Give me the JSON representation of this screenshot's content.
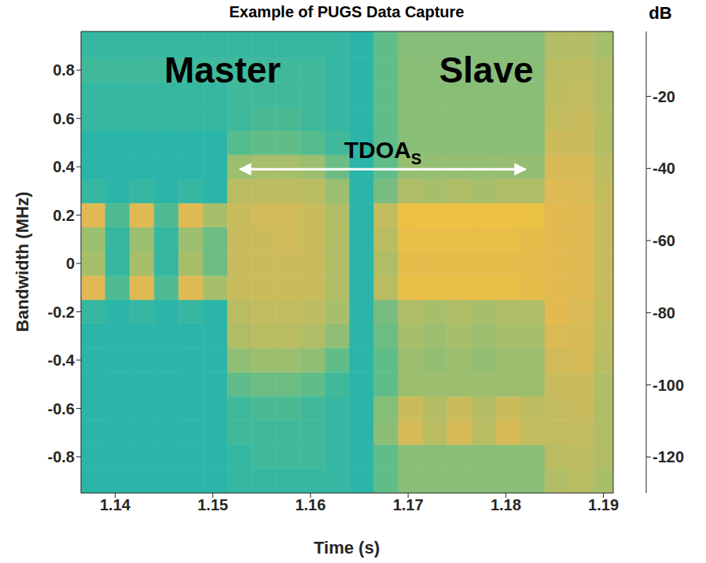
{
  "chart_data": {
    "type": "heatmap",
    "title": "Example of PUGS Data Capture",
    "x_label": "Time (s)",
    "y_label": "Bandwidth (MHz)",
    "xlim": [
      1.1365,
      1.191
    ],
    "ylim": [
      -0.95,
      0.96
    ],
    "xticks": [
      1.14,
      1.15,
      1.16,
      1.17,
      1.18,
      1.19
    ],
    "yticks": [
      -0.8,
      -0.6,
      -0.4,
      -0.2,
      0,
      0.2,
      0.4,
      0.6,
      0.8
    ],
    "x_edges": [
      1.1365,
      1.139,
      1.1415,
      1.144,
      1.1465,
      1.149,
      1.1515,
      1.154,
      1.1565,
      1.159,
      1.1615,
      1.164,
      1.1665,
      1.169,
      1.1715,
      1.174,
      1.1765,
      1.179,
      1.1815,
      1.184,
      1.1865,
      1.189,
      1.191
    ],
    "y_edges": [
      -0.95,
      -0.85,
      -0.75,
      -0.65,
      -0.55,
      -0.45,
      -0.35,
      -0.25,
      -0.15,
      -0.05,
      0.05,
      0.15,
      0.25,
      0.35,
      0.45,
      0.55,
      0.65,
      0.75,
      0.85,
      0.96
    ],
    "z": [
      [
        -62,
        -62,
        -62,
        -62,
        -62,
        -62,
        -60,
        -60,
        -60,
        -60,
        -60,
        -62,
        -52,
        -45,
        -45,
        -45,
        -45,
        -45,
        -45,
        -38,
        -36,
        -40
      ],
      [
        -62,
        -62,
        -62,
        -62,
        -62,
        -62,
        -60,
        -58,
        -58,
        -58,
        -60,
        -62,
        -52,
        -45,
        -45,
        -45,
        -45,
        -45,
        -45,
        -36,
        -35,
        -38
      ],
      [
        -62,
        -62,
        -62,
        -62,
        -62,
        -62,
        -58,
        -58,
        -58,
        -58,
        -60,
        -62,
        -45,
        -30,
        -36,
        -30,
        -36,
        -30,
        -34,
        -34,
        -34,
        -38
      ],
      [
        -62,
        -62,
        -62,
        -62,
        -62,
        -62,
        -58,
        -56,
        -56,
        -58,
        -60,
        -62,
        -46,
        -32,
        -37,
        -32,
        -37,
        -32,
        -35,
        -34,
        -33,
        -38
      ],
      [
        -62,
        -62,
        -62,
        -62,
        -62,
        -62,
        -52,
        -50,
        -50,
        -52,
        -58,
        -62,
        -52,
        -42,
        -42,
        -42,
        -42,
        -42,
        -42,
        -33,
        -32,
        -38
      ],
      [
        -62,
        -62,
        -62,
        -62,
        -62,
        -62,
        -44,
        -42,
        -42,
        -44,
        -52,
        -62,
        -52,
        -42,
        -43,
        -42,
        -43,
        -42,
        -42,
        -31,
        -30,
        -36
      ],
      [
        -62,
        -62,
        -62,
        -62,
        -62,
        -62,
        -38,
        -36,
        -36,
        -38,
        -44,
        -62,
        -50,
        -40,
        -42,
        -40,
        -42,
        -40,
        -40,
        -29,
        -30,
        -35
      ],
      [
        -60,
        -62,
        -60,
        -62,
        -60,
        -62,
        -36,
        -34,
        -34,
        -35,
        -40,
        -62,
        -48,
        -38,
        -40,
        -38,
        -40,
        -38,
        -38,
        -27,
        -29,
        -34
      ],
      [
        -28,
        -55,
        -28,
        -55,
        -28,
        -40,
        -33,
        -32,
        -32,
        -33,
        -38,
        -62,
        -36,
        -24,
        -24,
        -24,
        -24,
        -24,
        -25,
        -27,
        -28,
        -33
      ],
      [
        -40,
        -60,
        -40,
        -60,
        -40,
        -50,
        -33,
        -32,
        -32,
        -33,
        -38,
        -62,
        -38,
        -25,
        -25,
        -25,
        -25,
        -25,
        -26,
        -27,
        -28,
        -33
      ],
      [
        -42,
        -60,
        -42,
        -60,
        -42,
        -50,
        -33,
        -32,
        -31,
        -33,
        -38,
        -62,
        -36,
        -24,
        -24,
        -24,
        -24,
        -24,
        -25,
        -27,
        -28,
        -33
      ],
      [
        -28,
        -55,
        -28,
        -55,
        -28,
        -40,
        -33,
        -31,
        -31,
        -33,
        -38,
        -62,
        -34,
        -22,
        -22,
        -22,
        -22,
        -22,
        -23,
        -27,
        -28,
        -33
      ],
      [
        -60,
        -62,
        -60,
        -62,
        -60,
        -62,
        -36,
        -35,
        -35,
        -36,
        -42,
        -62,
        -48,
        -38,
        -40,
        -38,
        -40,
        -38,
        -38,
        -28,
        -29,
        -34
      ],
      [
        -62,
        -62,
        -62,
        -62,
        -62,
        -62,
        -42,
        -40,
        -40,
        -42,
        -50,
        -62,
        -52,
        -43,
        -43,
        -43,
        -43,
        -43,
        -43,
        -30,
        -30,
        -35
      ],
      [
        -62,
        -62,
        -62,
        -62,
        -62,
        -62,
        -54,
        -52,
        -52,
        -54,
        -58,
        -62,
        -52,
        -45,
        -45,
        -45,
        -45,
        -45,
        -45,
        -32,
        -32,
        -37
      ],
      [
        -60,
        -60,
        -60,
        -60,
        -60,
        -60,
        -58,
        -56,
        -56,
        -58,
        -60,
        -62,
        -52,
        -45,
        -45,
        -45,
        -45,
        -45,
        -45,
        -34,
        -33,
        -37
      ],
      [
        -60,
        -60,
        -60,
        -60,
        -60,
        -60,
        -58,
        -58,
        -58,
        -58,
        -60,
        -62,
        -52,
        -45,
        -45,
        -45,
        -45,
        -45,
        -45,
        -35,
        -34,
        -38
      ],
      [
        -58,
        -58,
        -58,
        -58,
        -58,
        -58,
        -58,
        -58,
        -58,
        -58,
        -60,
        -62,
        -52,
        -45,
        -45,
        -45,
        -45,
        -45,
        -45,
        -36,
        -35,
        -38
      ],
      [
        -60,
        -60,
        -60,
        -60,
        -60,
        -60,
        -60,
        -60,
        -60,
        -60,
        -60,
        -62,
        -52,
        -46,
        -46,
        -46,
        -46,
        -46,
        -46,
        -38,
        -37,
        -40
      ]
    ],
    "colorbar": {
      "title": "dB",
      "range": [
        -130,
        -2
      ],
      "ticks": [
        -120,
        -100,
        -80,
        -60,
        -40,
        -20
      ]
    },
    "annotations": [
      {
        "text": "Master",
        "x": 1.151,
        "y": 0.8
      },
      {
        "text": "Slave",
        "x": 1.178,
        "y": 0.8
      },
      {
        "text": "TDOA",
        "subscript": "S",
        "x": [
          1.1528,
          1.182
        ],
        "y": 0.39
      }
    ]
  }
}
